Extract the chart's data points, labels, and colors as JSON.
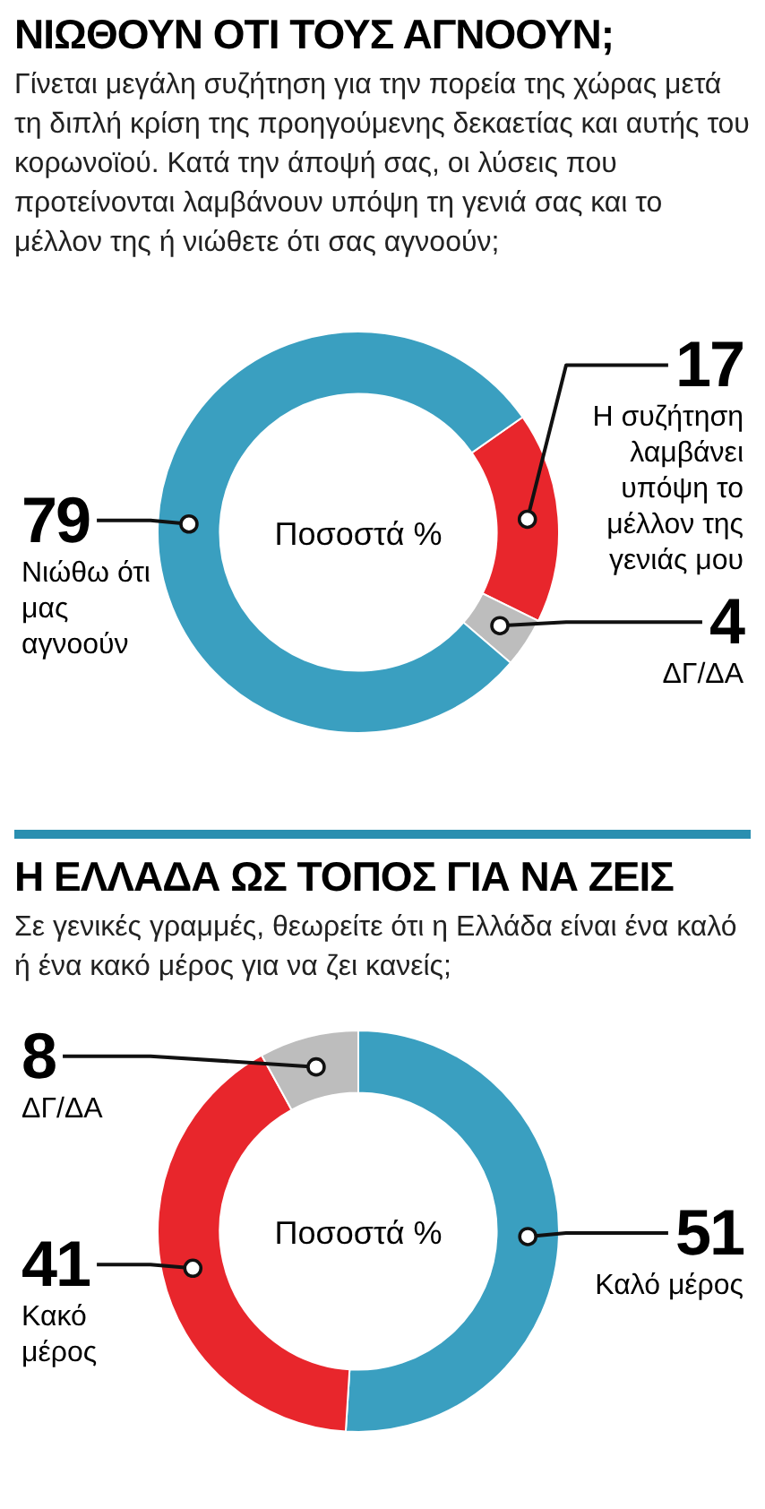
{
  "chart_data": [
    {
      "type": "donut",
      "title": "ΝΙΩΘΟΥΝ ΟΤΙ ΤΟΥΣ ΑΓΝΟΟΥΝ;",
      "subtitle": "Γίνεται μεγάλη συζήτηση για την πορεία της χώρας μετά τη διπλή κρίση της προηγούμενης δεκαετίας και αυτής του κορωνοϊού. Κατά την άποψή σας, οι λύσεις που προτείνονται λαμβάνουν υπόψη τη γενιά σας και το μέλλον της ή νιώθετε ότι σας αγνοούν;",
      "categories": [
        "Η συζήτηση λαμβάνει υπόψη το μέλλον της γενιάς μου",
        "ΔΓ/ΔΑ",
        "Νιώθω ότι μας αγνοούν"
      ],
      "values": [
        17,
        4,
        79
      ],
      "colors": [
        "#e8262c",
        "#bdbdbd",
        "#3a9fc0"
      ],
      "annotations": [
        "Ποσοστά %"
      ],
      "data_labels": true
    },
    {
      "type": "donut",
      "title": "Η ΕΛΛΑΔΑ ΩΣ ΤΟΠΟΣ ΓΙΑ ΝΑ ΖΕΙΣ",
      "subtitle": "Σε γενικές γραμμές, θεωρείτε ότι η Ελλάδα είναι ένα καλό ή ένα κακό μέρος για να ζει κανείς;",
      "categories": [
        "Καλό μέρος",
        "Κακό μέρος",
        "ΔΓ/ΔΑ"
      ],
      "values": [
        51,
        41,
        8
      ],
      "colors": [
        "#3a9fc0",
        "#e8262c",
        "#bdbdbd"
      ],
      "annotations": [
        "Ποσοστά %"
      ],
      "data_labels": true
    }
  ]
}
